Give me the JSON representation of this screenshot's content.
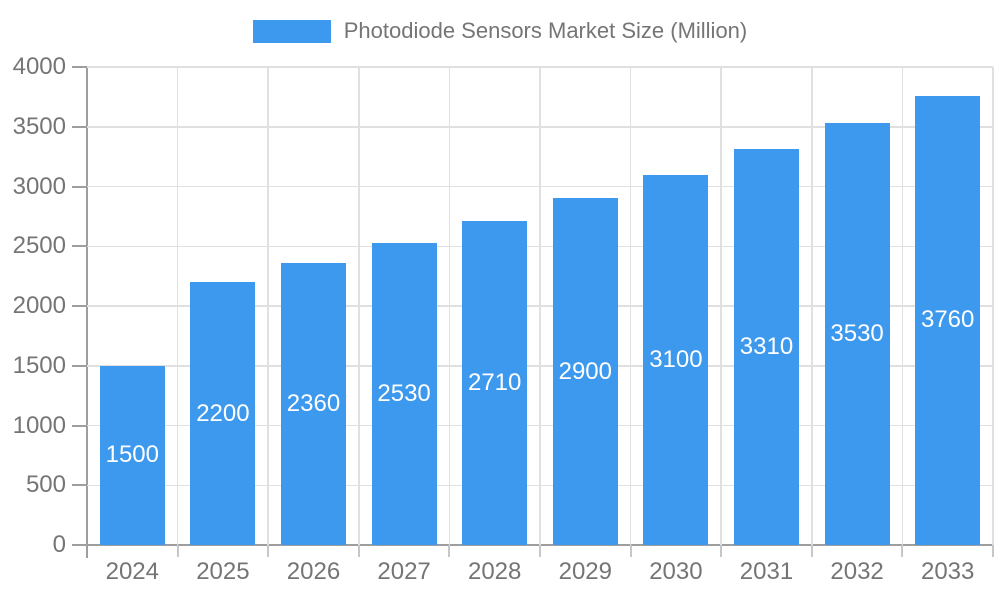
{
  "chart_data": {
    "type": "bar",
    "title": "Photodiode Sensors Market Size (Million)",
    "series_name": "Photodiode Sensors Market Size (Million)",
    "categories": [
      "2024",
      "2025",
      "2026",
      "2027",
      "2028",
      "2029",
      "2030",
      "2031",
      "2032",
      "2033"
    ],
    "values": [
      1500,
      2200,
      2360,
      2530,
      2710,
      2900,
      3100,
      3310,
      3530,
      3760
    ],
    "xlabel": "",
    "ylabel": "",
    "ylim": [
      0,
      4000
    ],
    "ytick_interval": 500,
    "yticks": [
      0,
      500,
      1000,
      1500,
      2000,
      2500,
      3000,
      3500,
      4000
    ],
    "grid": true,
    "legend_position": "top",
    "value_labels": "inside-center",
    "colors": {
      "bar": "#3d99ee",
      "gridline": "#e0e0e0",
      "axis_line": "#9e9e9e",
      "tick_label": "#757575",
      "legend_text": "#757575",
      "value_label": "#ffffff",
      "background": "#ffffff"
    }
  }
}
